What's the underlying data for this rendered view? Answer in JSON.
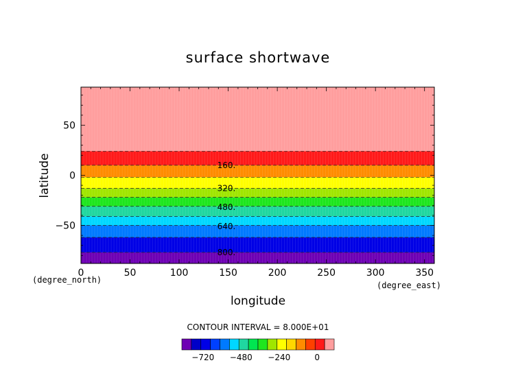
{
  "chart_data": {
    "type": "heatmap",
    "title": "surface shortwave",
    "xlabel": "longitude",
    "ylabel": "latitude",
    "x_unit": "(degree_east)",
    "y_unit": "(degree_north)",
    "xlim": [
      0,
      360
    ],
    "ylim": [
      -88,
      88
    ],
    "x_ticks": [
      {
        "value": 0,
        "label": "0"
      },
      {
        "value": 50,
        "label": "50"
      },
      {
        "value": 100,
        "label": "100"
      },
      {
        "value": 150,
        "label": "150"
      },
      {
        "value": 200,
        "label": "200"
      },
      {
        "value": 250,
        "label": "250"
      },
      {
        "value": 300,
        "label": "300"
      },
      {
        "value": 350,
        "label": "350"
      }
    ],
    "y_ticks": [
      {
        "value": 50,
        "label": "50"
      },
      {
        "value": 0,
        "label": "0"
      },
      {
        "value": -50,
        "label": "−50"
      }
    ],
    "bands": [
      {
        "lat_from": 24,
        "lat_to": 88,
        "color": "#ff9e9e"
      },
      {
        "lat_from": 10,
        "lat_to": 24,
        "color": "#ff1a1a"
      },
      {
        "lat_from": -2,
        "lat_to": 10,
        "color": "#ff8c00"
      },
      {
        "lat_from": -13,
        "lat_to": -2,
        "color": "#ffff00"
      },
      {
        "lat_from": -22,
        "lat_to": -13,
        "color": "#a0e600"
      },
      {
        "lat_from": -31,
        "lat_to": -22,
        "color": "#1ee61e"
      },
      {
        "lat_from": -41,
        "lat_to": -31,
        "color": "#20d7a0"
      },
      {
        "lat_from": -50,
        "lat_to": -41,
        "color": "#00d7ff"
      },
      {
        "lat_from": -62,
        "lat_to": -50,
        "color": "#007aff"
      },
      {
        "lat_from": -77,
        "lat_to": -62,
        "color": "#0000e6"
      },
      {
        "lat_from": -88,
        "lat_to": -77,
        "color": "#6e00b4"
      }
    ],
    "contour_lines": [
      24,
      10,
      -2,
      -13,
      -22,
      -31,
      -41,
      -50,
      -62,
      -77
    ],
    "contour_labels": [
      {
        "text": "160.",
        "lon": 130,
        "lat": 10
      },
      {
        "text": "320.",
        "lon": 130,
        "lat": -13
      },
      {
        "text": "480.",
        "lon": 130,
        "lat": -32
      },
      {
        "text": "640.",
        "lon": 130,
        "lat": -51
      },
      {
        "text": "800.",
        "lon": 130,
        "lat": -77
      }
    ],
    "contour_interval_text": "CONTOUR INTERVAL = 8.000E+01",
    "colorbar": {
      "colors": [
        "#6e00b4",
        "#0000c8",
        "#0000e6",
        "#0040ff",
        "#007aff",
        "#00d7ff",
        "#20d7a0",
        "#00e650",
        "#1ee61e",
        "#a0e600",
        "#ffff00",
        "#ffd700",
        "#ff8c00",
        "#ff4000",
        "#ff1a1a",
        "#ff9e9e"
      ],
      "ticks": [
        {
          "index": 2,
          "label": "−720"
        },
        {
          "index": 6,
          "label": "−480"
        },
        {
          "index": 10,
          "label": "−240"
        },
        {
          "index": 14,
          "label": "0"
        }
      ]
    }
  }
}
